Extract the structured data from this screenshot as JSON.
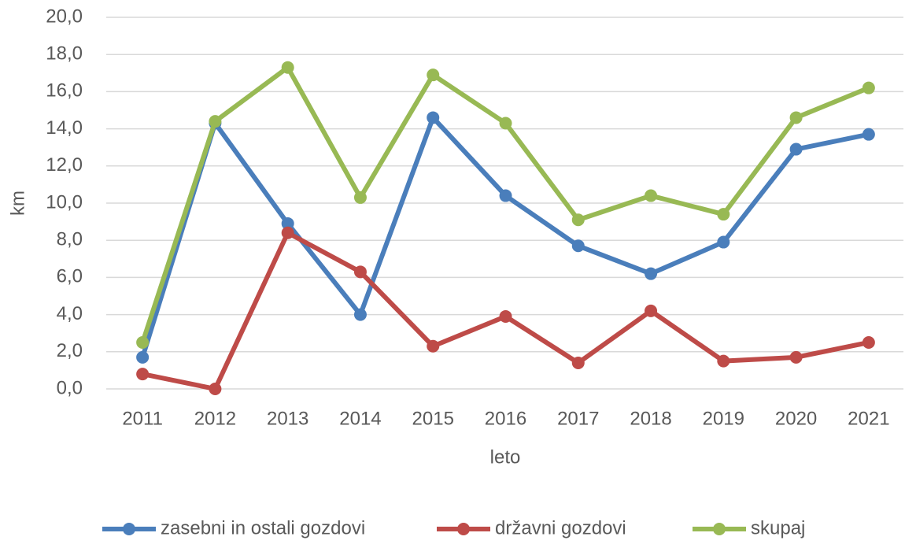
{
  "chart_data": {
    "type": "line",
    "xlabel": "leto",
    "ylabel": "km",
    "categories": [
      "2011",
      "2012",
      "2013",
      "2014",
      "2015",
      "2016",
      "2017",
      "2018",
      "2019",
      "2020",
      "2021"
    ],
    "series": [
      {
        "name": "zasebni in ostali gozdovi",
        "color": "#4a7ebb",
        "values": [
          1.7,
          14.3,
          8.9,
          4.0,
          14.6,
          10.4,
          7.7,
          6.2,
          7.9,
          12.9,
          13.7
        ]
      },
      {
        "name": "državni gozdovi",
        "color": "#be4b48",
        "values": [
          0.8,
          0.0,
          8.4,
          6.3,
          2.3,
          3.9,
          1.4,
          4.2,
          1.5,
          1.7,
          2.5
        ]
      },
      {
        "name": "skupaj",
        "color": "#98b954",
        "values": [
          2.5,
          14.4,
          17.3,
          10.3,
          16.9,
          14.3,
          9.1,
          10.4,
          9.4,
          14.6,
          16.2
        ]
      }
    ],
    "ylim": [
      0,
      20
    ],
    "yticks": [
      {
        "value": 0,
        "label": "0,0"
      },
      {
        "value": 2,
        "label": "2,0"
      },
      {
        "value": 4,
        "label": "4,0"
      },
      {
        "value": 6,
        "label": "6,0"
      },
      {
        "value": 8,
        "label": "8,0"
      },
      {
        "value": 10,
        "label": "10,0"
      },
      {
        "value": 12,
        "label": "12,0"
      },
      {
        "value": 14,
        "label": "14,0"
      },
      {
        "value": 16,
        "label": "16,0"
      },
      {
        "value": 18,
        "label": "18,0"
      },
      {
        "value": 20,
        "label": "20,0"
      }
    ],
    "grid": true,
    "legend": "bottom"
  }
}
